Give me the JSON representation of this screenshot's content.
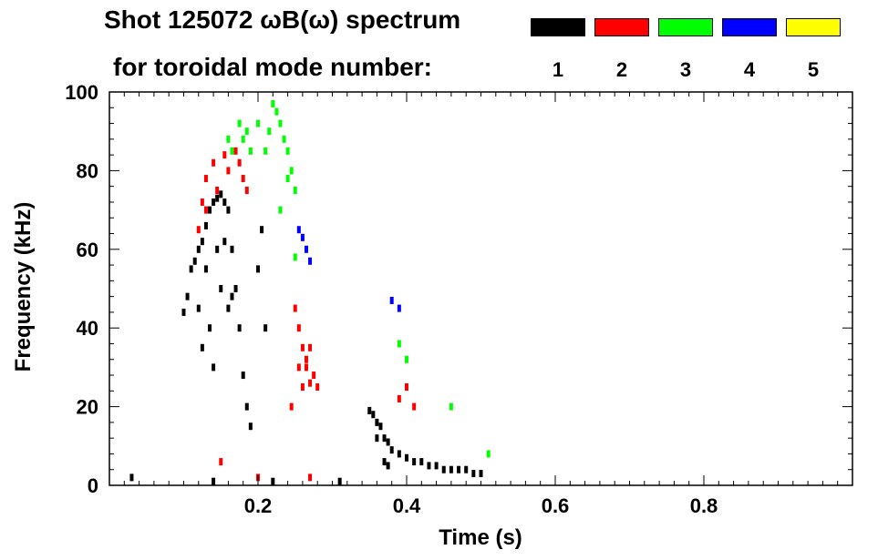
{
  "chart_data": {
    "type": "scatter",
    "title_line1": "Shot 125072 ωB(ω) spectrum",
    "title_line2": "for toroidal mode number:",
    "xlabel": "Time (s)",
    "ylabel": "Frequency (kHz)",
    "xlim": [
      0.0,
      1.0
    ],
    "ylim": [
      0,
      100
    ],
    "xticks": [
      0.2,
      0.4,
      0.6,
      0.8
    ],
    "xtick_labels": [
      "0.2",
      "0.4",
      "0.6",
      "0.8"
    ],
    "yticks": [
      0,
      20,
      40,
      60,
      80,
      100
    ],
    "ytick_labels": [
      "0",
      "20",
      "40",
      "60",
      "80",
      "100"
    ],
    "legend": [
      {
        "label": "1",
        "color": "#000000"
      },
      {
        "label": "2",
        "color": "#ff0000"
      },
      {
        "label": "3",
        "color": "#00ff00"
      },
      {
        "label": "4",
        "color": "#0000ff"
      },
      {
        "label": "5",
        "color": "#ffff00"
      }
    ],
    "series": [
      {
        "name": "1",
        "color": "#000000",
        "values": [
          [
            0.1,
            44
          ],
          [
            0.105,
            48
          ],
          [
            0.11,
            55
          ],
          [
            0.115,
            57
          ],
          [
            0.12,
            60
          ],
          [
            0.125,
            62
          ],
          [
            0.13,
            66
          ],
          [
            0.135,
            70
          ],
          [
            0.14,
            72
          ],
          [
            0.145,
            73
          ],
          [
            0.15,
            74
          ],
          [
            0.155,
            72
          ],
          [
            0.16,
            70
          ],
          [
            0.165,
            60
          ],
          [
            0.17,
            50
          ],
          [
            0.175,
            40
          ],
          [
            0.18,
            28
          ],
          [
            0.185,
            20
          ],
          [
            0.19,
            15
          ],
          [
            0.135,
            40
          ],
          [
            0.14,
            30
          ],
          [
            0.15,
            50
          ],
          [
            0.16,
            45
          ],
          [
            0.125,
            35
          ],
          [
            0.2,
            55
          ],
          [
            0.205,
            65
          ],
          [
            0.21,
            40
          ],
          [
            0.12,
            45
          ],
          [
            0.13,
            55
          ],
          [
            0.145,
            60
          ],
          [
            0.155,
            62
          ],
          [
            0.165,
            48
          ],
          [
            0.35,
            19
          ],
          [
            0.355,
            18
          ],
          [
            0.36,
            16
          ],
          [
            0.365,
            15
          ],
          [
            0.37,
            12
          ],
          [
            0.375,
            11
          ],
          [
            0.38,
            9
          ],
          [
            0.39,
            8
          ],
          [
            0.4,
            7
          ],
          [
            0.41,
            6
          ],
          [
            0.42,
            6
          ],
          [
            0.43,
            5
          ],
          [
            0.44,
            5
          ],
          [
            0.45,
            4
          ],
          [
            0.46,
            4
          ],
          [
            0.47,
            4
          ],
          [
            0.48,
            4
          ],
          [
            0.49,
            3
          ],
          [
            0.5,
            3
          ],
          [
            0.36,
            12
          ],
          [
            0.37,
            6
          ],
          [
            0.375,
            5
          ],
          [
            0.03,
            2
          ],
          [
            0.14,
            1
          ],
          [
            0.22,
            1
          ],
          [
            0.31,
            1
          ]
        ]
      },
      {
        "name": "2",
        "color": "#ff0000",
        "values": [
          [
            0.12,
            65
          ],
          [
            0.125,
            72
          ],
          [
            0.13,
            78
          ],
          [
            0.14,
            82
          ],
          [
            0.145,
            75
          ],
          [
            0.16,
            80
          ],
          [
            0.17,
            85
          ],
          [
            0.175,
            82
          ],
          [
            0.18,
            78
          ],
          [
            0.185,
            75
          ],
          [
            0.155,
            84
          ],
          [
            0.13,
            70
          ],
          [
            0.245,
            20
          ],
          [
            0.25,
            45
          ],
          [
            0.255,
            40
          ],
          [
            0.26,
            35
          ],
          [
            0.265,
            30
          ],
          [
            0.27,
            26
          ],
          [
            0.275,
            28
          ],
          [
            0.28,
            25
          ],
          [
            0.255,
            30
          ],
          [
            0.26,
            25
          ],
          [
            0.265,
            32
          ],
          [
            0.27,
            35
          ],
          [
            0.39,
            22
          ],
          [
            0.4,
            25
          ],
          [
            0.41,
            20
          ],
          [
            0.15,
            6
          ],
          [
            0.2,
            2
          ],
          [
            0.27,
            2
          ]
        ]
      },
      {
        "name": "3",
        "color": "#00ff00",
        "values": [
          [
            0.175,
            92
          ],
          [
            0.18,
            88
          ],
          [
            0.185,
            90
          ],
          [
            0.19,
            85
          ],
          [
            0.2,
            92
          ],
          [
            0.21,
            85
          ],
          [
            0.215,
            90
          ],
          [
            0.22,
            97
          ],
          [
            0.225,
            95
          ],
          [
            0.23,
            92
          ],
          [
            0.235,
            88
          ],
          [
            0.24,
            85
          ],
          [
            0.245,
            80
          ],
          [
            0.25,
            75
          ],
          [
            0.23,
            70
          ],
          [
            0.24,
            78
          ],
          [
            0.16,
            88
          ],
          [
            0.165,
            85
          ],
          [
            0.25,
            58
          ],
          [
            0.39,
            36
          ],
          [
            0.4,
            32
          ],
          [
            0.46,
            20
          ],
          [
            0.51,
            8
          ]
        ]
      },
      {
        "name": "4",
        "color": "#0000ff",
        "values": [
          [
            0.255,
            65
          ],
          [
            0.26,
            63
          ],
          [
            0.265,
            60
          ],
          [
            0.27,
            57
          ],
          [
            0.39,
            45
          ],
          [
            0.38,
            47
          ]
        ]
      },
      {
        "name": "5",
        "color": "#ffff00",
        "values": []
      }
    ]
  }
}
